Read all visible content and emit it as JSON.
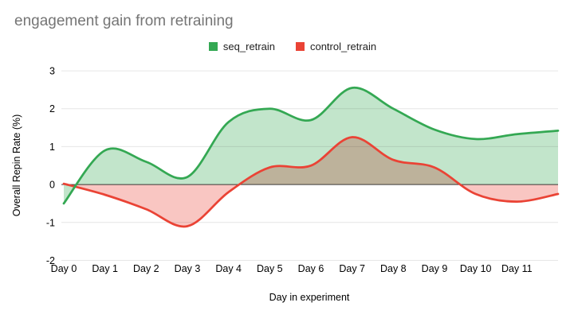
{
  "title": "engagement gain from retraining",
  "colors": {
    "background": "#ffffff",
    "title_text": "#757575",
    "axis_text": "#000000",
    "legend_text": "#1f1f1f",
    "gridline": "#e6e6e6",
    "zero_line": "#424242",
    "seq_retrain_line": "#34a853",
    "seq_retrain_fill": "rgba(52,168,83,0.30)",
    "control_retrain_line": "#ea4335",
    "control_retrain_fill": "rgba(234,67,53,0.30)"
  },
  "chart_data": {
    "type": "area",
    "smooth": true,
    "title": "engagement gain from retraining",
    "xlabel": "Day in experiment",
    "ylabel": "Overall Repin Rate (%)",
    "legend_position": "top",
    "grid": "horizontal",
    "baseline": 0,
    "xlim": [
      0,
      12
    ],
    "ylim": [
      -2,
      3
    ],
    "y_ticks": [
      3,
      2,
      1,
      0,
      -1,
      -2
    ],
    "x_tick_labels": [
      "Day 0",
      "Day 1",
      "Day 2",
      "Day 3",
      "Day 4",
      "Day 5",
      "Day 6",
      "Day 7",
      "Day 8",
      "Day 9",
      "Day 10",
      "Day 11"
    ],
    "x": [
      0,
      1,
      2,
      3,
      4,
      5,
      6,
      7,
      8,
      9,
      10,
      11,
      12
    ],
    "series": [
      {
        "name": "seq_retrain",
        "color": "#34a853",
        "fill": "rgba(52,168,83,0.30)",
        "values": [
          -0.5,
          0.9,
          0.6,
          0.2,
          1.65,
          2.0,
          1.7,
          2.55,
          2.0,
          1.45,
          1.2,
          1.33,
          1.42
        ]
      },
      {
        "name": "control_retrain",
        "color": "#ea4335",
        "fill": "rgba(234,67,53,0.30)",
        "values": [
          0.02,
          -0.27,
          -0.65,
          -1.1,
          -0.2,
          0.45,
          0.5,
          1.25,
          0.65,
          0.45,
          -0.25,
          -0.45,
          -0.25
        ]
      }
    ]
  }
}
